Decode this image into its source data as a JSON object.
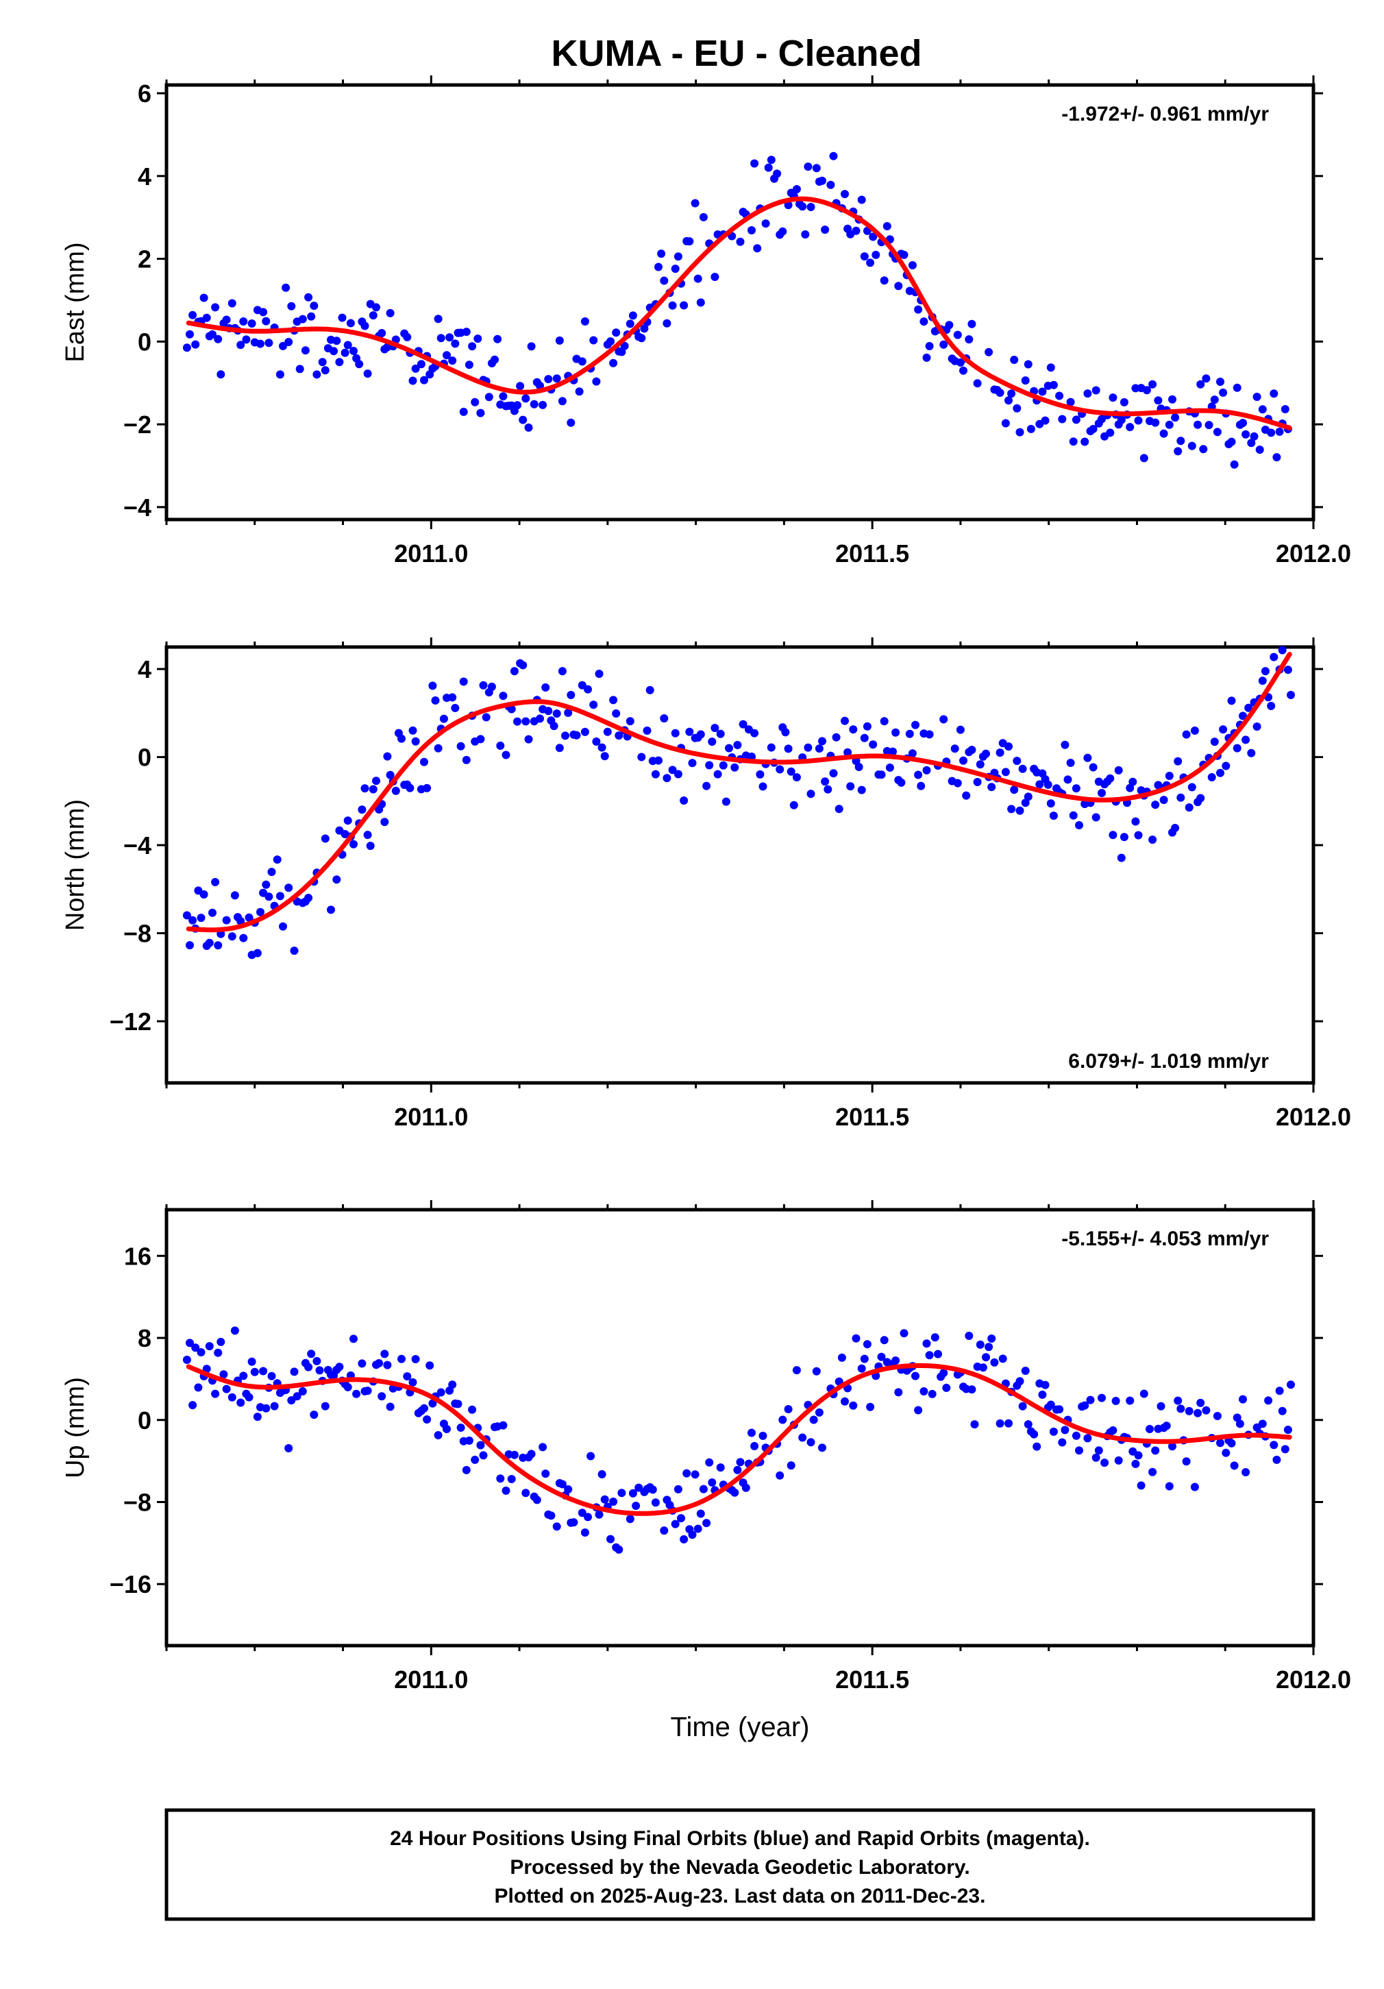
{
  "title": "KUMA  - EU - Cleaned",
  "footer": {
    "lines": [
      "24 Hour Positions Using Final Orbits (blue) and Rapid Orbits (magenta).",
      "Processed by the Nevada Geodetic Laboratory.",
      "Plotted on 2025-Aug-23. Last data on 2011-Dec-23."
    ]
  },
  "colors": {
    "data_points": "#0000ff",
    "fit_curve": "#ff0000",
    "axes": "#000000"
  },
  "chart_data": [
    {
      "type": "scatter",
      "ylabel": "East (mm)",
      "xlabel": "",
      "rate_label": "-1.972+/- 0.961 mm/yr",
      "rate_position": "top-right",
      "xlim": [
        2010.7,
        2012.0
      ],
      "ylim": [
        -4.3,
        6.2
      ],
      "xticks": [
        2011.0,
        2011.5,
        2012.0
      ],
      "xtick_labels": [
        "2011.0",
        "2011.5",
        "2012.0"
      ],
      "yticks": [
        -4,
        -2,
        0,
        2,
        4,
        6
      ],
      "ytick_labels": [
        "−4",
        "−2",
        "0",
        "2",
        "4",
        "6"
      ],
      "fit_knots": {
        "x": [
          2010.725,
          2010.8,
          2010.88,
          2010.95,
          2011.03,
          2011.08,
          2011.12,
          2011.18,
          2011.24,
          2011.3,
          2011.36,
          2011.42,
          2011.47,
          2011.53,
          2011.58,
          2011.64,
          2011.7,
          2011.75,
          2011.82,
          2011.9,
          2011.975
        ],
        "y": [
          0.45,
          0.25,
          0.3,
          0.0,
          -0.75,
          -1.15,
          -1.2,
          -0.6,
          0.5,
          1.9,
          3.0,
          3.45,
          3.15,
          2.0,
          0.2,
          -0.9,
          -1.45,
          -1.7,
          -1.72,
          -1.7,
          -2.1
        ]
      }
    },
    {
      "type": "scatter",
      "ylabel": "North (mm)",
      "xlabel": "",
      "rate_label": "6.079+/- 1.019 mm/yr",
      "rate_position": "bottom-right",
      "xlim": [
        2010.7,
        2012.0
      ],
      "ylim": [
        -14.8,
        5.0
      ],
      "xticks": [
        2011.0,
        2011.5,
        2012.0
      ],
      "xtick_labels": [
        "2011.0",
        "2011.5",
        "2012.0"
      ],
      "yticks": [
        -12,
        -8,
        -4,
        0,
        4
      ],
      "ytick_labels": [
        "−12",
        "−8",
        "−4",
        "0",
        "4"
      ],
      "fit_knots": {
        "x": [
          2010.725,
          2010.77,
          2010.83,
          2010.88,
          2010.94,
          2010.99,
          2011.04,
          2011.09,
          2011.13,
          2011.18,
          2011.25,
          2011.33,
          2011.42,
          2011.5,
          2011.58,
          2011.66,
          2011.73,
          2011.76,
          2011.82,
          2011.88,
          2011.93,
          2011.975
        ],
        "y": [
          -7.8,
          -7.8,
          -6.8,
          -5.0,
          -2.0,
          0.4,
          1.8,
          2.4,
          2.5,
          1.9,
          0.7,
          -0.05,
          -0.2,
          0.05,
          -0.35,
          -1.2,
          -1.85,
          -1.95,
          -1.6,
          -0.3,
          2.0,
          4.8
        ]
      }
    },
    {
      "type": "scatter",
      "ylabel": "Up (mm)",
      "xlabel": "Time (year)",
      "rate_label": "-5.155+/- 4.053 mm/yr",
      "rate_position": "top-right",
      "xlim": [
        2010.7,
        2012.0
      ],
      "ylim": [
        -22.0,
        20.5
      ],
      "xticks": [
        2011.0,
        2011.5,
        2012.0
      ],
      "xtick_labels": [
        "2011.0",
        "2011.5",
        "2012.0"
      ],
      "yticks": [
        -16,
        -8,
        0,
        8,
        16
      ],
      "ytick_labels": [
        "−16",
        "−8",
        "0",
        "8",
        "16"
      ],
      "fit_knots": {
        "x": [
          2010.725,
          2010.78,
          2010.84,
          2010.9,
          2010.96,
          2011.02,
          2011.08,
          2011.14,
          2011.2,
          2011.25,
          2011.3,
          2011.36,
          2011.42,
          2011.48,
          2011.55,
          2011.62,
          2011.68,
          2011.74,
          2011.8,
          2011.86,
          2011.92,
          2011.975
        ],
        "y": [
          5.2,
          3.5,
          3.3,
          3.9,
          3.5,
          1.2,
          -3.5,
          -7.0,
          -8.8,
          -9.1,
          -8.2,
          -4.8,
          0.3,
          4.0,
          5.3,
          4.3,
          1.6,
          -1.0,
          -2.0,
          -2.0,
          -1.5,
          -1.7
        ]
      }
    }
  ]
}
